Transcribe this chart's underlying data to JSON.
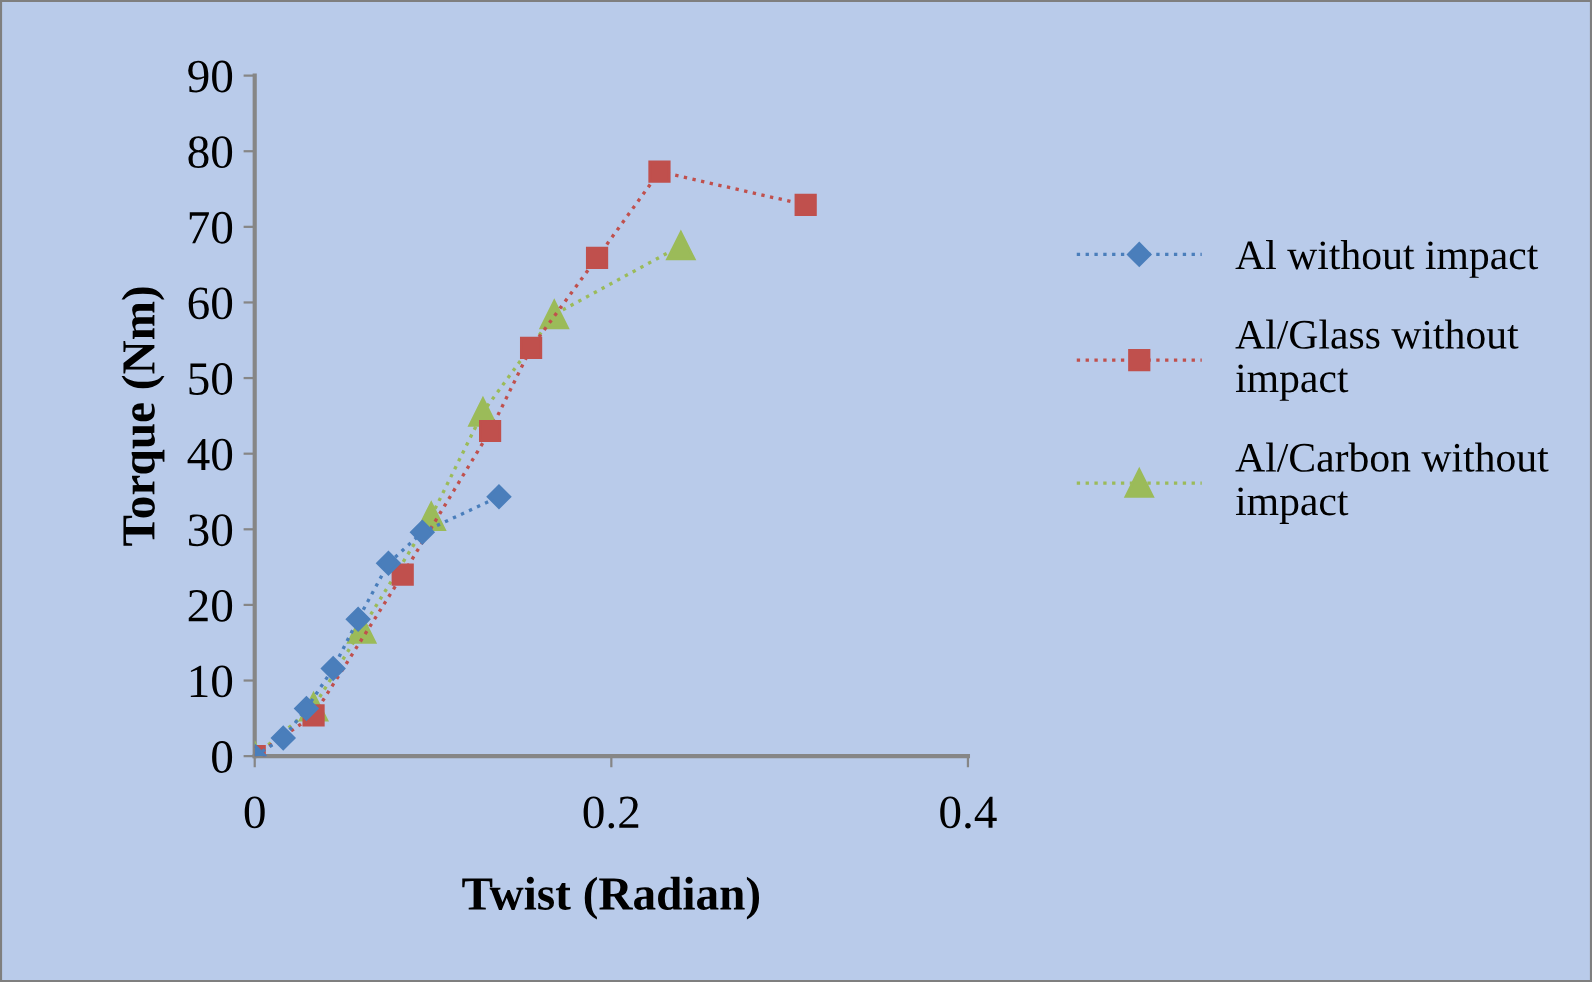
{
  "chart_data": {
    "type": "line",
    "xlabel": "Twist (Radian)",
    "ylabel": "Torque (Nm)",
    "xlim": [
      0,
      0.4
    ],
    "xticks": [
      0,
      0.2,
      0.4
    ],
    "ylim": [
      0,
      90
    ],
    "yticks": [
      0,
      10,
      20,
      30,
      40,
      50,
      60,
      70,
      80,
      90
    ],
    "grid": false,
    "legend": "right",
    "line_style": "dotted",
    "series": [
      {
        "name": "Al without impact",
        "color": "#4a7ebb",
        "marker": "diamond",
        "x": [
          0,
          0.016,
          0.029,
          0.044,
          0.058,
          0.075,
          0.094,
          0.137
        ],
        "values": [
          0,
          2.4,
          6.3,
          11.6,
          18.1,
          25.5,
          29.6,
          34.3
        ]
      },
      {
        "name": "Al/Glass without impact",
        "color": "#c0504d",
        "marker": "square",
        "x": [
          0,
          0.033,
          0.083,
          0.132,
          0.155,
          0.192,
          0.227,
          0.309
        ],
        "values": [
          0,
          5.4,
          24.0,
          43.0,
          54.0,
          65.9,
          77.3,
          72.9
        ]
      },
      {
        "name": "Al/Carbon without impact",
        "color": "#9bbb59",
        "marker": "triangle",
        "x": [
          0,
          0.033,
          0.06,
          0.099,
          0.128,
          0.168,
          0.239
        ],
        "values": [
          0,
          6.5,
          16.8,
          31.7,
          45.5,
          58.4,
          67.5
        ]
      }
    ]
  }
}
